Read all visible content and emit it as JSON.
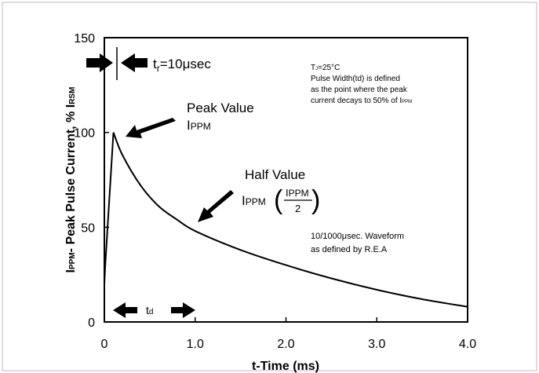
{
  "chart_data": {
    "type": "line",
    "title": "",
    "xlabel": "t-Time (ms)",
    "ylabel": {
      "prefix": "I",
      "prefix_sub": "PPM",
      "middle": "- Peak Pulse Current, % I",
      "suffix_sub": "RSM"
    },
    "xlim": [
      0,
      4.0
    ],
    "ylim": [
      0,
      150
    ],
    "x_ticks": [
      {
        "value": 0,
        "label": "0"
      },
      {
        "value": 1.0,
        "label": "1.0"
      },
      {
        "value": 2.0,
        "label": "2.0"
      },
      {
        "value": 3.0,
        "label": "3.0"
      },
      {
        "value": 4.0,
        "label": "4.0"
      }
    ],
    "y_ticks": [
      {
        "value": 0,
        "label": "0"
      },
      {
        "value": 50,
        "label": "50"
      },
      {
        "value": 100,
        "label": "100"
      },
      {
        "value": 150,
        "label": "150"
      }
    ],
    "grid": false,
    "series": [
      {
        "color": "#000000",
        "x": [
          0,
          0.01,
          0.1,
          0.2,
          0.4,
          0.6,
          0.8,
          1.0,
          1.5,
          2.0,
          2.5,
          3.0,
          3.5,
          4.0
        ],
        "y": [
          20,
          30,
          100,
          88,
          72,
          61,
          54,
          48,
          38,
          30,
          23,
          17,
          12,
          8
        ]
      }
    ],
    "annotations": {
      "rise": {
        "t": "t",
        "sub": "r",
        "rest": "=10μsec"
      },
      "peak_label": "Peak Value",
      "peak_current": {
        "main": "I",
        "sub": "PPM"
      },
      "half_label": "Half Value",
      "half_current": {
        "main": "I",
        "sub": "PPM"
      },
      "half_fraction": {
        "num_main": "I",
        "num_sub": "PPM",
        "den": "2"
      },
      "td": {
        "main": "t",
        "sub": "d"
      },
      "note_temp": {
        "main": "T",
        "sub": "J",
        "rest": "=25°C"
      },
      "note_line1": "Pulse Width(td) is defined",
      "note_line2": "as the point where the peak",
      "note_line3": "current decays to 50% of I",
      "note_line3_sub": "PPM",
      "waveform_line1": "10/1000μsec.  Waveform",
      "waveform_line2": "as defined by R.E.A"
    }
  }
}
